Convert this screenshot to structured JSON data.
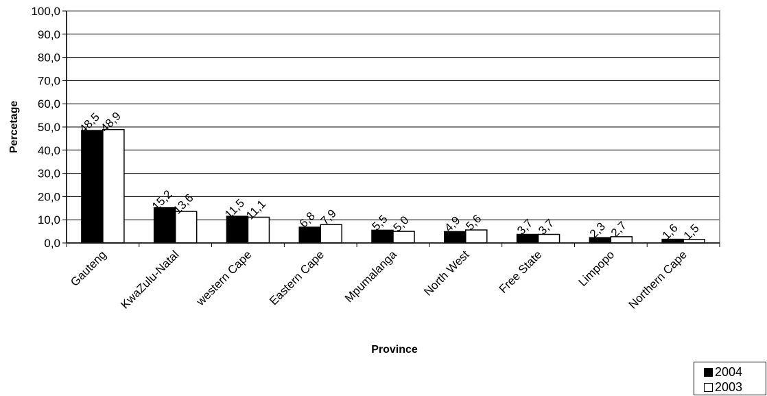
{
  "chart_data": {
    "type": "bar",
    "xlabel": "Province",
    "ylabel": "Percetage",
    "ylim": [
      0,
      100
    ],
    "y_ticks": [
      "0,0",
      "10,0",
      "20,0",
      "30,0",
      "40,0",
      "50,0",
      "60,0",
      "70,0",
      "80,0",
      "90,0",
      "100,0"
    ],
    "categories": [
      "Gauteng",
      "KwaZulu-Natal",
      "western Cape",
      "Eastern Cape",
      "Mpumalanga",
      "North West",
      "Free State",
      "Limpopo",
      "Northern Cape"
    ],
    "series": [
      {
        "name": "2004",
        "color": "#000000",
        "values": [
          48.5,
          15.2,
          11.5,
          6.8,
          5.5,
          4.9,
          3.7,
          2.3,
          1.6
        ],
        "labels": [
          "48,5",
          "15,2",
          "11,5",
          "6,8",
          "5,5",
          "4,9",
          "3,7",
          "2,3",
          "1,6"
        ]
      },
      {
        "name": "2003",
        "color": "#ffffff",
        "values": [
          48.9,
          13.6,
          11.1,
          7.9,
          5.0,
          5.6,
          3.7,
          2.7,
          1.5
        ],
        "labels": [
          "48,9",
          "13,6",
          "11,1",
          "7,9",
          "5,0",
          "5,6",
          "3,7",
          "2,7",
          "1,5"
        ]
      }
    ],
    "grid": true,
    "legend_position": "bottom-right"
  }
}
